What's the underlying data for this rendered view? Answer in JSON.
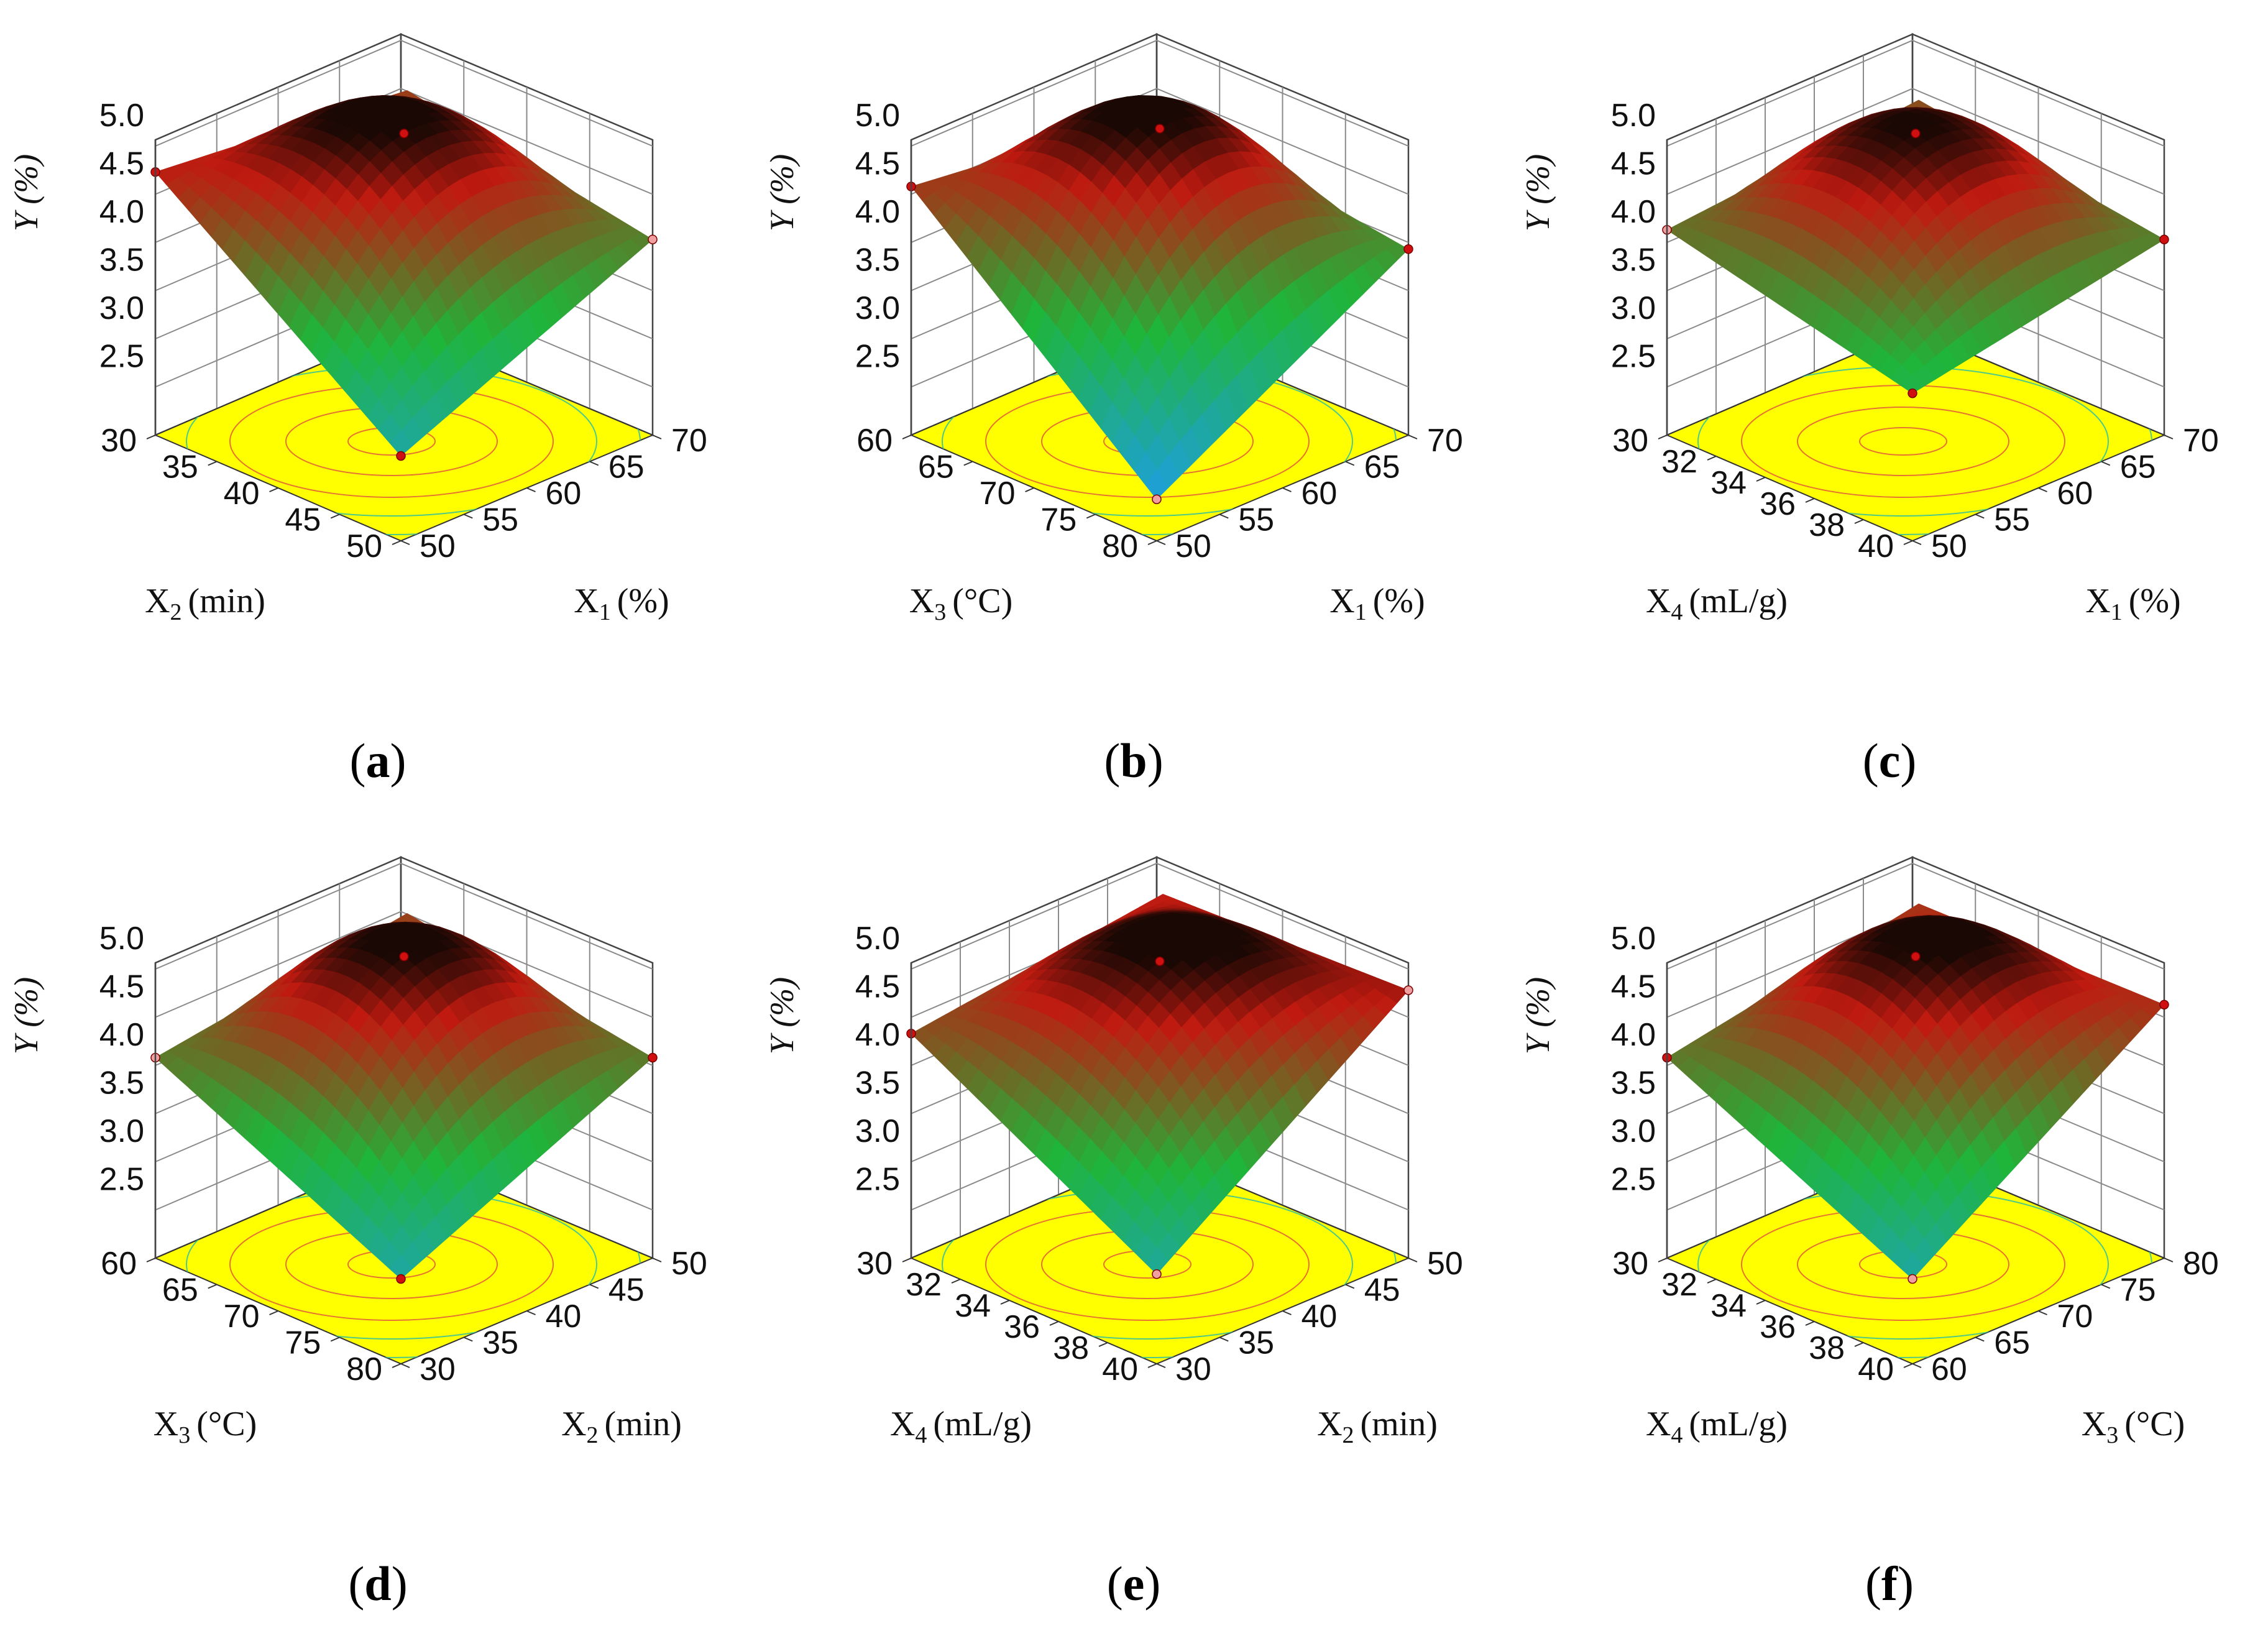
{
  "figure": {
    "colors": {
      "floor": "#ffff00",
      "contour_low": "#2fbf9f",
      "contour_high": "#e05a3a",
      "surface_low": "#1ea0d8",
      "surface_mid": "#1fb53a",
      "surface_high": "#c01a10",
      "surface_top": "#1a0804",
      "point_above": "#d01010",
      "point_below": "#f0a0a0"
    }
  },
  "chart_data": [
    {
      "type": "surface3d",
      "caption_letter": "a",
      "caption_open": "(",
      "caption_close": ")",
      "zlabel": "Y (%)",
      "zticks": [
        "2.5",
        "3.0",
        "3.5",
        "4.0",
        "4.5",
        "5.0"
      ],
      "zlim": [
        2.0,
        5.0
      ],
      "x_axis": {
        "symbol": "X",
        "sub": "2",
        "unit": "(min)",
        "ticks": [
          "30",
          "35",
          "40",
          "45",
          "50"
        ],
        "range": [
          30,
          50
        ]
      },
      "y_axis": {
        "symbol": "X",
        "sub": "1",
        "unit": "(%)",
        "ticks": [
          "50",
          "55",
          "60",
          "65",
          "70"
        ],
        "range": [
          50,
          70
        ]
      },
      "corners": {
        "left": 4.15,
        "right": 3.45,
        "front": 2.3,
        "back": 3.9
      },
      "center": 4.55,
      "design_points": [
        {
          "pos": "left",
          "value": 4.15,
          "side": "above"
        },
        {
          "pos": "center",
          "value": 4.55,
          "side": "above"
        },
        {
          "pos": "right",
          "value": 3.45,
          "side": "below"
        },
        {
          "pos": "front",
          "value": 2.3,
          "side": "above"
        }
      ]
    },
    {
      "type": "surface3d",
      "caption_letter": "b",
      "caption_open": "(",
      "caption_close": ")",
      "zlabel": "Y (%)",
      "zticks": [
        "2.5",
        "3.0",
        "3.5",
        "4.0",
        "4.5",
        "5.0"
      ],
      "zlim": [
        2.0,
        5.0
      ],
      "x_axis": {
        "symbol": "X",
        "sub": "3",
        "unit": "(°C)",
        "ticks": [
          "60",
          "65",
          "70",
          "75",
          "80"
        ],
        "range": [
          60,
          80
        ]
      },
      "y_axis": {
        "symbol": "X",
        "sub": "1",
        "unit": "(%)",
        "ticks": [
          "50",
          "55",
          "60",
          "65",
          "70"
        ],
        "range": [
          50,
          70
        ]
      },
      "corners": {
        "left": 4.0,
        "right": 3.35,
        "front": 1.85,
        "back": 3.7
      },
      "center": 4.6,
      "design_points": [
        {
          "pos": "left",
          "value": 4.0,
          "side": "above"
        },
        {
          "pos": "center",
          "value": 4.6,
          "side": "above"
        },
        {
          "pos": "right",
          "value": 3.35,
          "side": "above"
        },
        {
          "pos": "front",
          "value": 1.85,
          "side": "below"
        }
      ]
    },
    {
      "type": "surface3d",
      "caption_letter": "c",
      "caption_open": "(",
      "caption_close": ")",
      "zlabel": "Y (%)",
      "zticks": [
        "2.5",
        "3.0",
        "3.5",
        "4.0",
        "4.5",
        "5.0"
      ],
      "zlim": [
        2.0,
        5.0
      ],
      "x_axis": {
        "symbol": "X",
        "sub": "4",
        "unit": "(mL/g)",
        "ticks": [
          "30",
          "32",
          "34",
          "36",
          "38",
          "40"
        ],
        "range": [
          30,
          40
        ]
      },
      "y_axis": {
        "symbol": "X",
        "sub": "1",
        "unit": "(%)",
        "ticks": [
          "50",
          "55",
          "60",
          "65",
          "70"
        ],
        "range": [
          50,
          70
        ]
      },
      "corners": {
        "left": 3.55,
        "right": 3.45,
        "front": 2.95,
        "back": 3.8
      },
      "center": 4.55,
      "design_points": [
        {
          "pos": "left",
          "value": 3.55,
          "side": "below"
        },
        {
          "pos": "center",
          "value": 4.55,
          "side": "above"
        },
        {
          "pos": "right",
          "value": 3.45,
          "side": "above"
        },
        {
          "pos": "front",
          "value": 2.95,
          "side": "above"
        }
      ]
    },
    {
      "type": "surface3d",
      "caption_letter": "d",
      "caption_open": "(",
      "caption_close": ")",
      "zlabel": "Y (%)",
      "zticks": [
        "2.5",
        "3.0",
        "3.5",
        "4.0",
        "4.5",
        "5.0"
      ],
      "zlim": [
        2.0,
        5.0
      ],
      "x_axis": {
        "symbol": "X",
        "sub": "3",
        "unit": "(°C)",
        "ticks": [
          "60",
          "65",
          "70",
          "75",
          "80"
        ],
        "range": [
          60,
          80
        ]
      },
      "y_axis": {
        "symbol": "X",
        "sub": "2",
        "unit": "(min)",
        "ticks": [
          "30",
          "35",
          "40",
          "45",
          "50"
        ],
        "range": [
          30,
          50
        ]
      },
      "corners": {
        "left": 3.5,
        "right": 3.5,
        "front": 2.3,
        "back": 3.9
      },
      "center": 4.55,
      "design_points": [
        {
          "pos": "left",
          "value": 3.5,
          "side": "below"
        },
        {
          "pos": "center",
          "value": 4.55,
          "side": "above"
        },
        {
          "pos": "right",
          "value": 3.5,
          "side": "above"
        },
        {
          "pos": "front",
          "value": 2.3,
          "side": "above"
        }
      ]
    },
    {
      "type": "surface3d",
      "caption_letter": "e",
      "caption_open": "(",
      "caption_close": ")",
      "zlabel": "Y (%)",
      "zticks": [
        "2.5",
        "3.0",
        "3.5",
        "4.0",
        "4.5",
        "5.0"
      ],
      "zlim": [
        2.0,
        5.0
      ],
      "x_axis": {
        "symbol": "X",
        "sub": "4",
        "unit": "(mL/g)",
        "ticks": [
          "30",
          "32",
          "34",
          "36",
          "38",
          "40"
        ],
        "range": [
          30,
          40
        ]
      },
      "y_axis": {
        "symbol": "X",
        "sub": "2",
        "unit": "(min)",
        "ticks": [
          "30",
          "35",
          "40",
          "45",
          "50"
        ],
        "range": [
          30,
          50
        ]
      },
      "corners": {
        "left": 3.75,
        "right": 4.2,
        "front": 2.35,
        "back": 4.1
      },
      "center": 4.5,
      "design_points": [
        {
          "pos": "left",
          "value": 3.75,
          "side": "above"
        },
        {
          "pos": "center",
          "value": 4.5,
          "side": "above"
        },
        {
          "pos": "right",
          "value": 4.2,
          "side": "below"
        },
        {
          "pos": "front",
          "value": 2.35,
          "side": "below"
        }
      ]
    },
    {
      "type": "surface3d",
      "caption_letter": "f",
      "caption_open": "(",
      "caption_close": ")",
      "zlabel": "Y (%)",
      "zticks": [
        "2.5",
        "3.0",
        "3.5",
        "4.0",
        "4.5",
        "5.0"
      ],
      "zlim": [
        2.0,
        5.0
      ],
      "x_axis": {
        "symbol": "X",
        "sub": "4",
        "unit": "(mL/g)",
        "ticks": [
          "30",
          "32",
          "34",
          "36",
          "38",
          "40"
        ],
        "range": [
          30,
          40
        ]
      },
      "y_axis": {
        "symbol": "X",
        "sub": "3",
        "unit": "(°C)",
        "ticks": [
          "60",
          "65",
          "70",
          "75",
          "80"
        ],
        "range": [
          60,
          80
        ]
      },
      "corners": {
        "left": 3.5,
        "right": 4.05,
        "front": 2.3,
        "back": 4.0
      },
      "center": 4.55,
      "design_points": [
        {
          "pos": "left",
          "value": 3.5,
          "side": "above"
        },
        {
          "pos": "center",
          "value": 4.55,
          "side": "above"
        },
        {
          "pos": "right",
          "value": 4.05,
          "side": "above"
        },
        {
          "pos": "front",
          "value": 2.3,
          "side": "below"
        }
      ]
    }
  ]
}
